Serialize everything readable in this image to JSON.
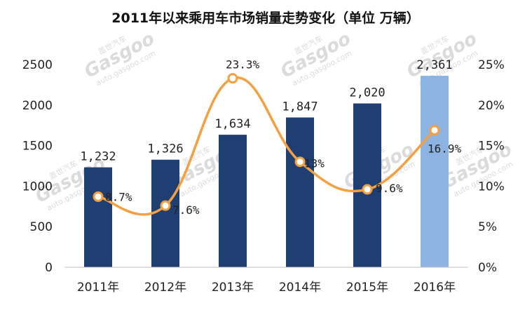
{
  "chart_data": {
    "type": "bar",
    "title": "2011年以来乘用车市场销量走势变化（单位 万辆）",
    "categories": [
      "2011年",
      "2012年",
      "2013年",
      "2014年",
      "2015年",
      "2016年"
    ],
    "series": [
      {
        "type": "bar",
        "axis": "left",
        "values": [
          1232,
          1326,
          1634,
          1847,
          2020,
          2361
        ],
        "labels": [
          "1,232",
          "1,326",
          "1,634",
          "1,847",
          "2,020",
          "2,361"
        ],
        "colors": [
          "#1f3f73",
          "#1f3f73",
          "#1f3f73",
          "#1f3f73",
          "#1f3f73",
          "#8db3e2"
        ]
      },
      {
        "type": "line",
        "axis": "right",
        "values": [
          8.7,
          7.6,
          23.3,
          13,
          9.6,
          16.9
        ],
        "labels": [
          "8.7%",
          "7.6%",
          "23.3%",
          "13%",
          "9.6%",
          "16.9%"
        ],
        "color": "#f5a040"
      }
    ],
    "y_left": {
      "min": 0,
      "max": 2500,
      "ticks": [
        "0",
        "500",
        "1000",
        "1500",
        "2000",
        "2500"
      ]
    },
    "y_right": {
      "min": 0,
      "max": 25,
      "ticks": [
        "0%",
        "5%",
        "10%",
        "15%",
        "20%",
        "25%"
      ]
    },
    "grid": false,
    "legend": "none"
  },
  "watermark": {
    "brand": "Gasgoo",
    "cn": "盖世汽车",
    "url": "auto.gasgoo.com"
  }
}
